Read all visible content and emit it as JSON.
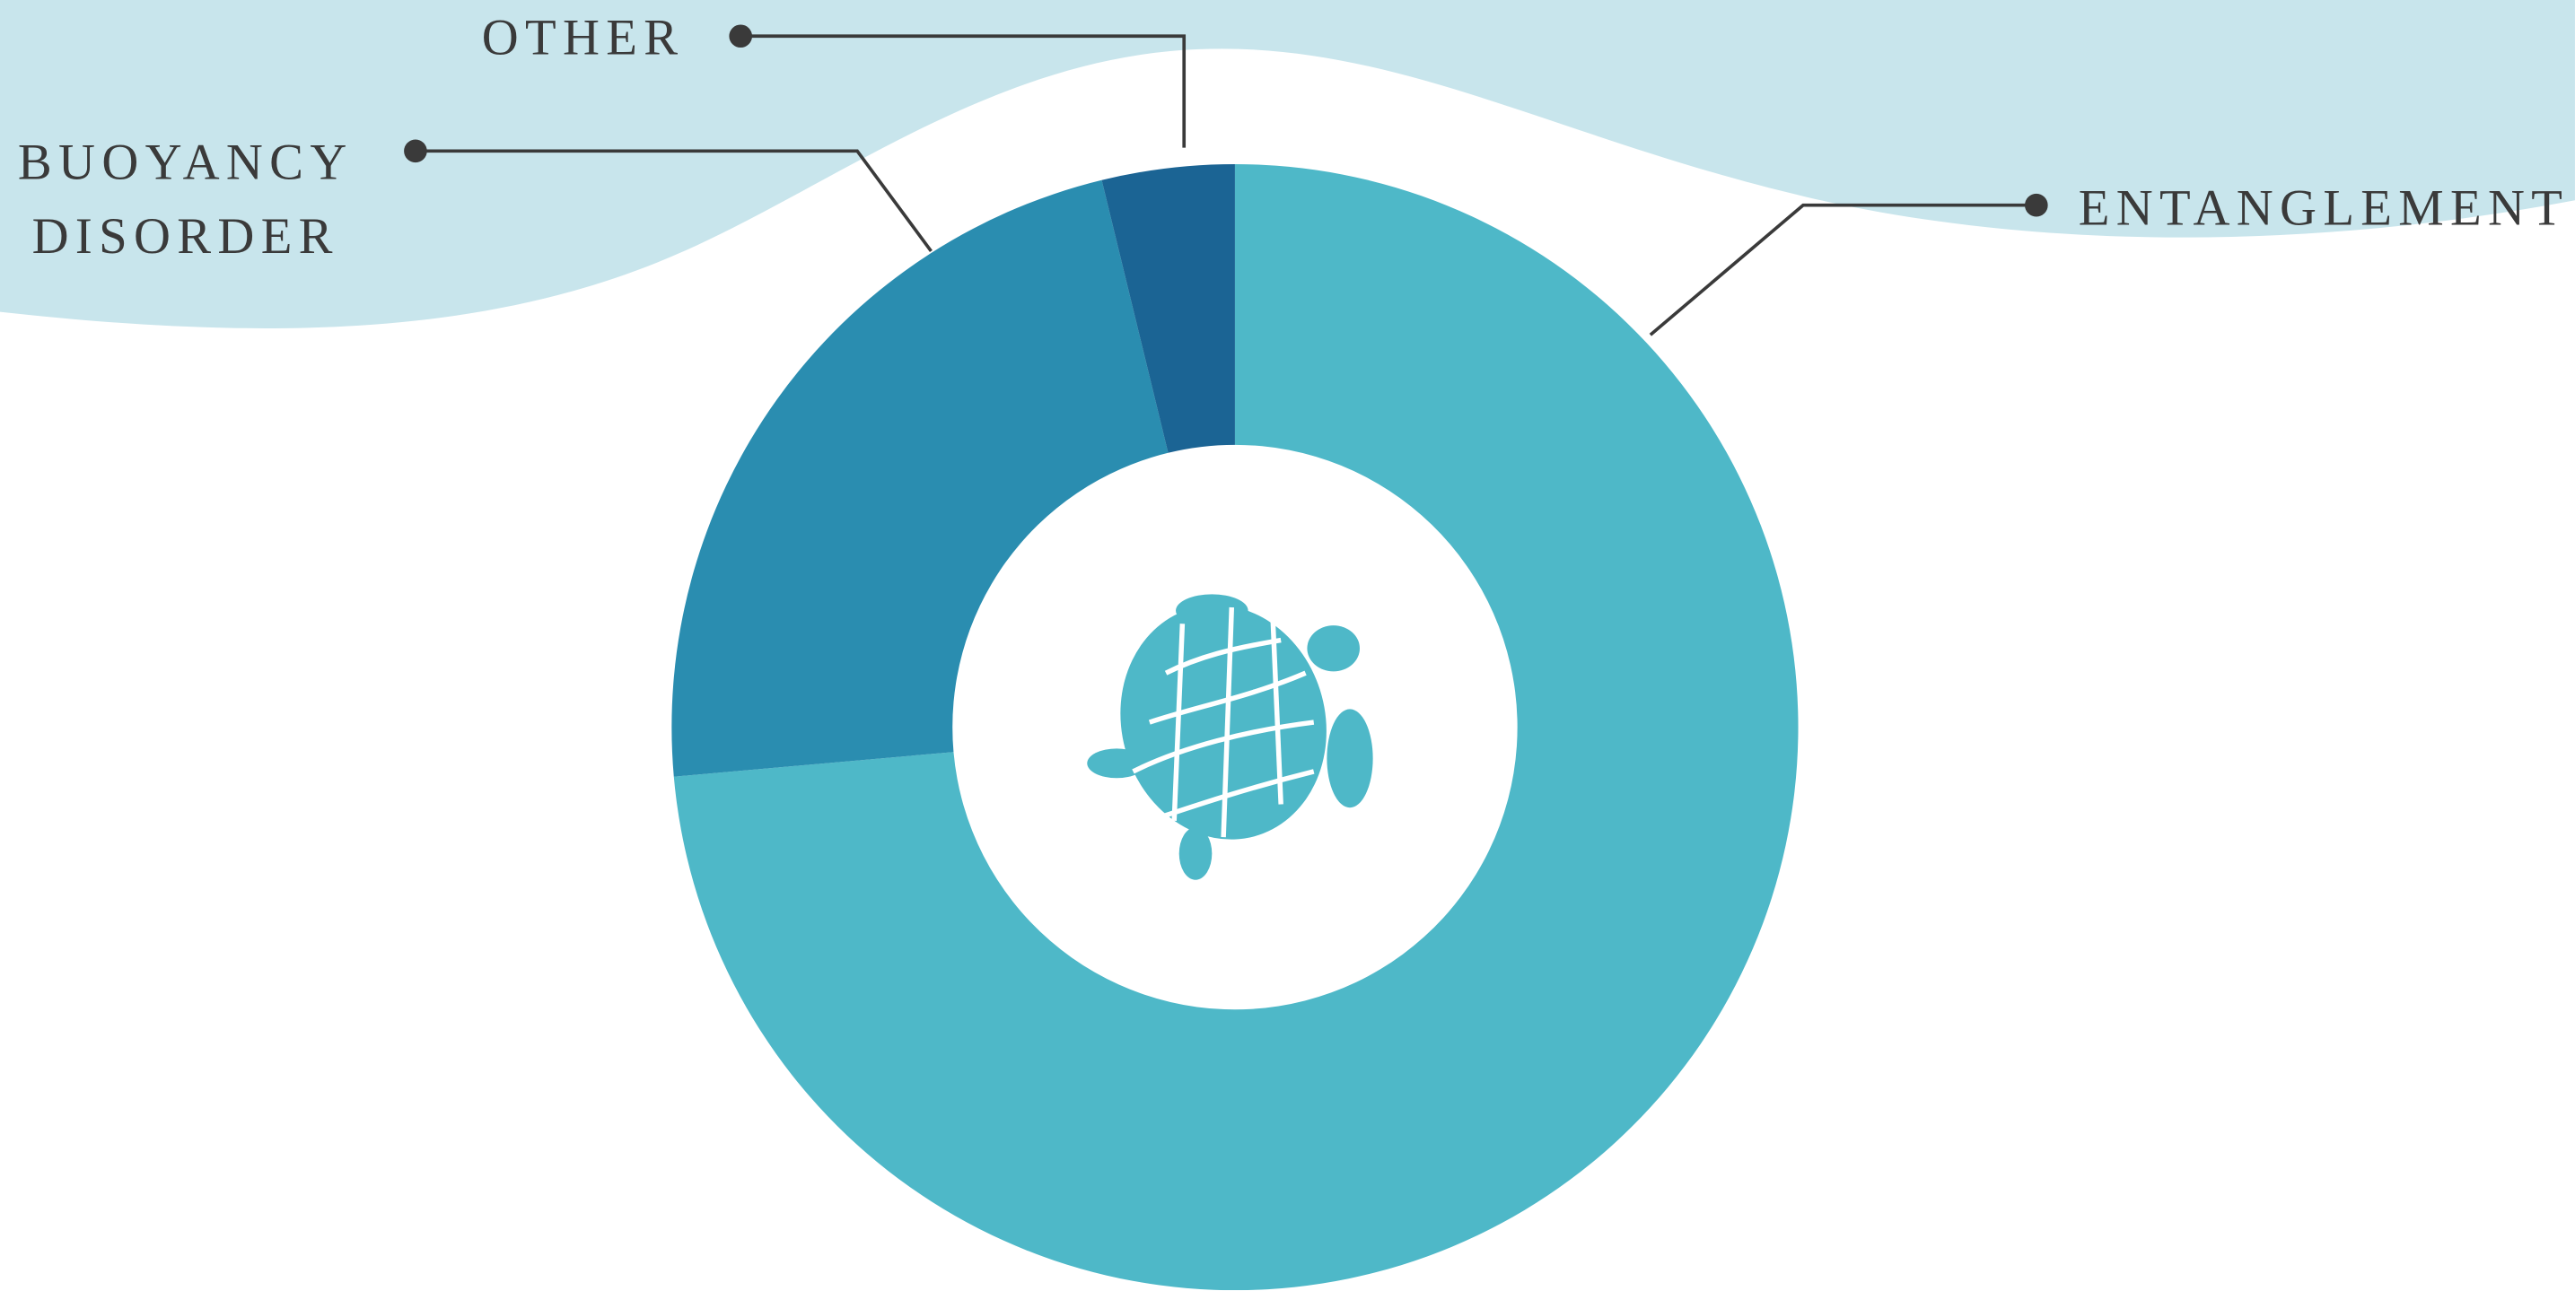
{
  "chart_data": {
    "type": "donut",
    "categories": [
      "ENTANGLEMENT",
      "BUOYANCY DISORDER",
      "OTHER"
    ],
    "values": [
      73.6,
      22.6,
      3.8
    ],
    "colors": [
      "#4eb8c8",
      "#2a8db0",
      "#1b6494"
    ]
  }
}
